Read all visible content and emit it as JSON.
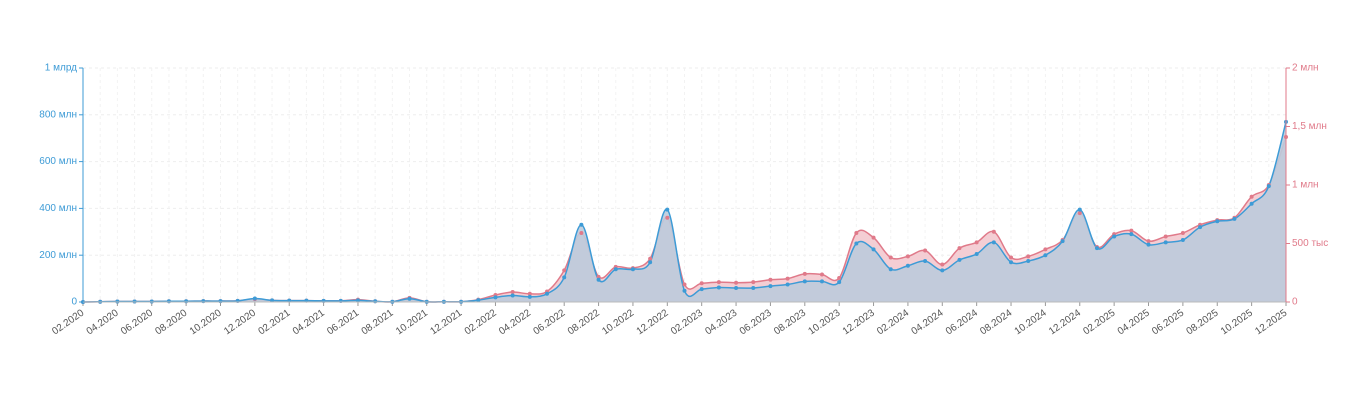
{
  "chart_data": {
    "type": "area-dual",
    "categories": [
      "02.2020",
      null,
      "04.2020",
      null,
      "06.2020",
      null,
      "08.2020",
      null,
      "10.2020",
      null,
      "12.2020",
      null,
      "02.2021",
      null,
      "04.2021",
      null,
      "06.2021",
      null,
      "08.2021",
      null,
      "10.2021",
      null,
      "12.2021",
      null,
      "02.2022",
      null,
      "04.2022",
      null,
      "06.2022",
      null,
      "08.2022",
      null,
      "10.2022",
      null,
      "12.2022",
      null,
      "02.2023",
      null,
      "04.2023",
      null,
      "06.2023",
      null,
      "08.2023",
      null,
      "10.2023",
      null,
      "12.2023",
      null,
      "02.2024",
      null,
      "04.2024",
      null,
      "06.2024",
      null,
      "08.2024",
      null,
      "10.2024",
      null,
      "12.2024",
      null,
      "02.2025",
      null,
      "04.2025",
      null,
      "06.2025",
      null,
      "08.2025",
      null,
      "10.2025",
      null,
      "12.2025"
    ],
    "series": [
      {
        "color": "#e07a8a",
        "fill": "#f3c9cf",
        "axis": "y2",
        "values": [
          0,
          2000,
          4000,
          4000,
          4000,
          6000,
          6000,
          8000,
          8000,
          10000,
          25000,
          14000,
          12000,
          12000,
          10000,
          10000,
          20000,
          6000,
          2000,
          35000,
          2000,
          2000,
          2000,
          20000,
          60000,
          85000,
          70000,
          90000,
          270000,
          590000,
          215000,
          300000,
          290000,
          370000,
          720000,
          150000,
          160000,
          170000,
          165000,
          170000,
          190000,
          200000,
          240000,
          235000,
          205000,
          590000,
          550000,
          380000,
          390000,
          440000,
          320000,
          460000,
          510000,
          600000,
          380000,
          390000,
          450000,
          530000,
          760000,
          470000,
          580000,
          610000,
          520000,
          560000,
          590000,
          660000,
          700000,
          720000,
          900000,
          1000000,
          1410000
        ]
      },
      {
        "color": "#3d9bd6",
        "fill": "#bccbdc",
        "values": [
          0,
          1000000,
          2000000,
          2000000,
          2000000,
          3000000,
          3000000,
          4000000,
          4000000,
          5000000,
          15000000,
          7000000,
          6000000,
          6000000,
          5000000,
          5000000,
          7000000,
          3000000,
          1000000,
          14000000,
          1000000,
          1000000,
          1000000,
          8000000,
          20000000,
          28000000,
          22000000,
          35000000,
          105000000,
          330000000,
          95000000,
          140000000,
          140000000,
          170000000,
          395000000,
          48000000,
          55000000,
          62000000,
          60000000,
          60000000,
          68000000,
          75000000,
          88000000,
          88000000,
          85000000,
          250000000,
          225000000,
          140000000,
          155000000,
          175000000,
          135000000,
          180000000,
          205000000,
          255000000,
          170000000,
          175000000,
          200000000,
          260000000,
          395000000,
          230000000,
          280000000,
          290000000,
          245000000,
          255000000,
          265000000,
          320000000,
          345000000,
          355000000,
          420000000,
          495000000,
          770000000
        ]
      }
    ],
    "ylim": [
      0,
      1000000000
    ],
    "yticks": [
      0,
      {
        "value": 200000000,
        "label": "200 млн"
      },
      {
        "value": 400000000,
        "label": "400 млн"
      },
      {
        "value": 600000000,
        "label": "600 млн"
      },
      {
        "value": 800000000,
        "label": "800 млн"
      },
      {
        "value": 1000000000,
        "label": "1 млрд"
      }
    ],
    "y2lim": [
      0,
      2000000
    ],
    "y2ticks": [
      0,
      {
        "value": 500000,
        "label": "500 тыс"
      },
      {
        "value": 1000000,
        "label": "1 млн"
      },
      {
        "value": 1500000,
        "label": "1,5 млн"
      },
      {
        "value": 2000000,
        "label": "2 млн"
      }
    ],
    "grid": true,
    "y_color": "#3d9bd6",
    "y2_color": "#e07a8a"
  }
}
